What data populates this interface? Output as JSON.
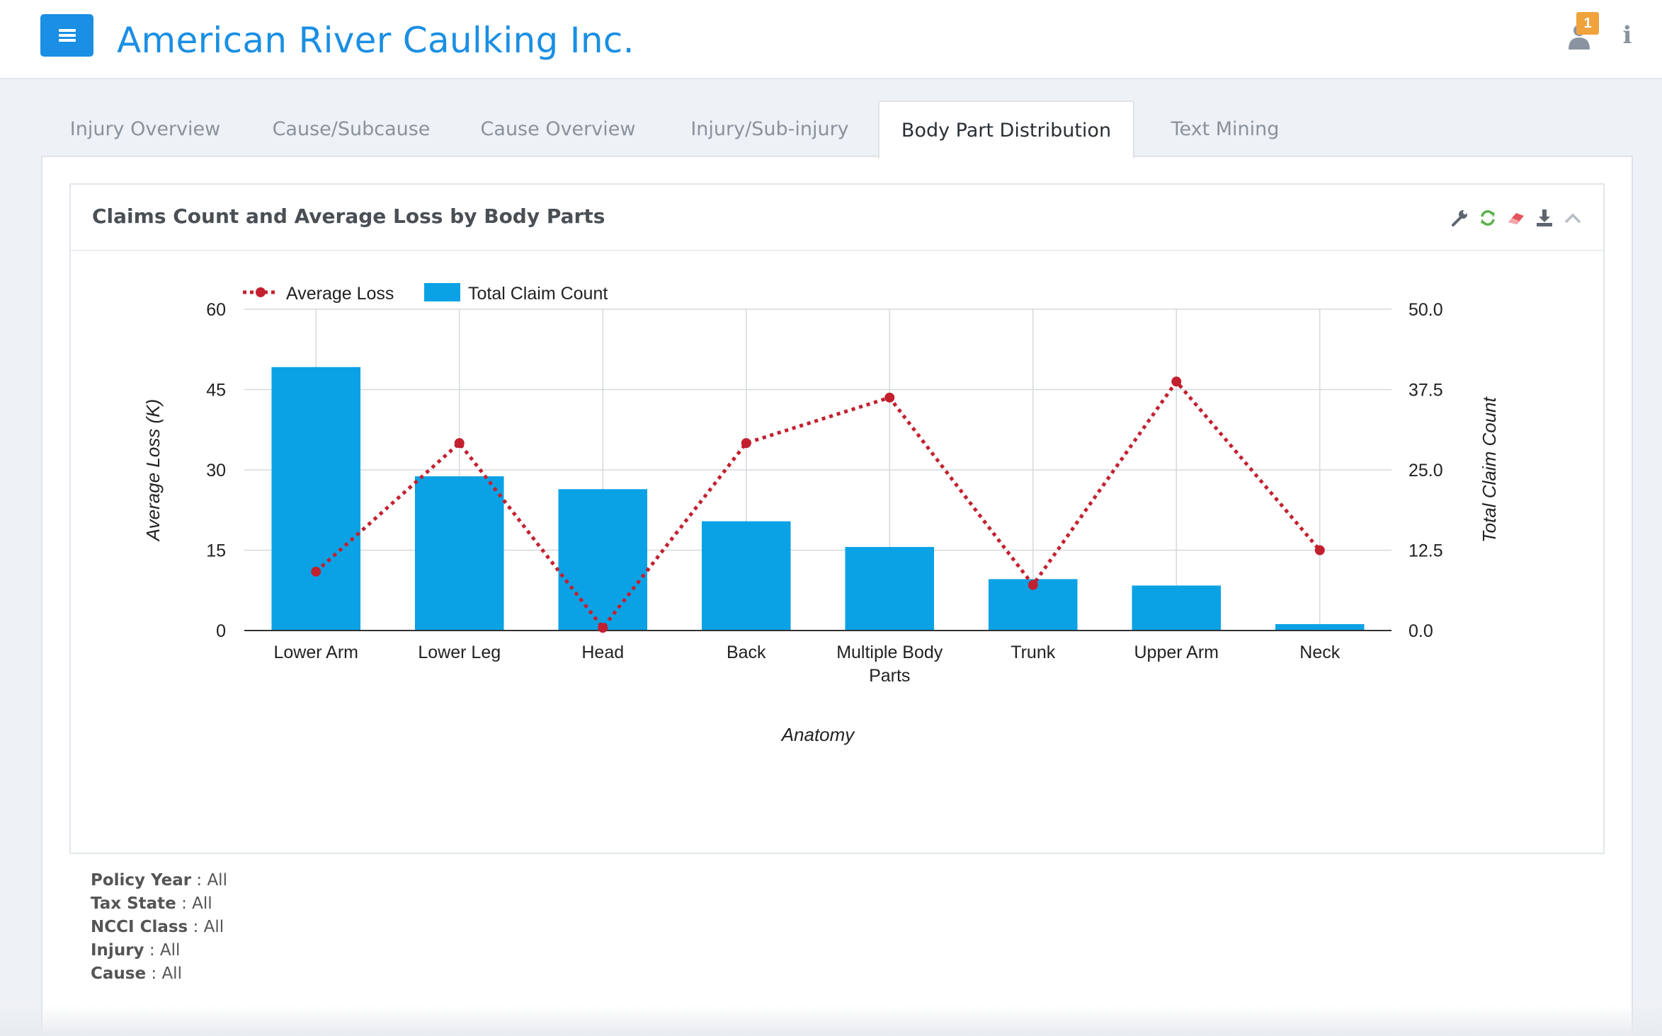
{
  "header": {
    "title": "American River Caulking Inc.",
    "notification_count": "1"
  },
  "tabs": [
    {
      "label": "Injury Overview",
      "active": false
    },
    {
      "label": "Cause/Subcause",
      "active": false
    },
    {
      "label": "Cause Overview",
      "active": false
    },
    {
      "label": "Injury/Sub-injury",
      "active": false
    },
    {
      "label": "Body Part Distribution",
      "active": true
    },
    {
      "label": "Text Mining",
      "active": false
    }
  ],
  "card": {
    "title": "Claims Count and Average Loss by Body Parts",
    "tools": [
      "wrench-icon",
      "refresh-icon",
      "eraser-icon",
      "download-icon",
      "collapse-icon"
    ]
  },
  "colors": {
    "accent": "#1a8fe3",
    "bar": "#0aa2e5",
    "line": "#c3202f",
    "badge": "#f0a23c"
  },
  "chart_data": {
    "type": "bar",
    "title": "Claims Count and Average Loss by Body Parts",
    "xlabel": "Anatomy",
    "ylabel": "Average Loss (K)",
    "y2label": "Total Claim Count",
    "categories": [
      "Lower Arm",
      "Lower Leg",
      "Head",
      "Back",
      "Multiple Body Parts",
      "Trunk",
      "Upper Arm",
      "Neck"
    ],
    "category_lines": [
      [
        "Lower Arm"
      ],
      [
        "Lower Leg"
      ],
      [
        "Head"
      ],
      [
        "Back"
      ],
      [
        "Multiple Body",
        "Parts"
      ],
      [
        "Trunk"
      ],
      [
        "Upper Arm"
      ],
      [
        "Neck"
      ]
    ],
    "series": [
      {
        "name": "Average Loss",
        "type": "line",
        "axis": "left",
        "values": [
          11,
          35,
          0.5,
          35,
          43.5,
          8.5,
          46.5,
          15
        ]
      },
      {
        "name": "Total Claim Count",
        "type": "bar",
        "axis": "right",
        "values": [
          41,
          24,
          22,
          17,
          13,
          8,
          7,
          1
        ]
      }
    ],
    "ylim": [
      0,
      60
    ],
    "y2lim": [
      0,
      50
    ],
    "yticks": [
      "0",
      "15",
      "30",
      "45",
      "60"
    ],
    "y2ticks": [
      "0.0",
      "12.5",
      "25.0",
      "37.5",
      "50.0"
    ],
    "legend": [
      {
        "name": "Average Loss",
        "kind": "line"
      },
      {
        "name": "Total Claim Count",
        "kind": "bar"
      }
    ],
    "legend_position": "top-left",
    "grid": true
  },
  "filters": [
    {
      "label": "Policy Year",
      "value": "All"
    },
    {
      "label": "Tax State",
      "value": "All"
    },
    {
      "label": "NCCI Class",
      "value": "All"
    },
    {
      "label": "Injury",
      "value": "All"
    },
    {
      "label": "Cause",
      "value": "All"
    }
  ]
}
